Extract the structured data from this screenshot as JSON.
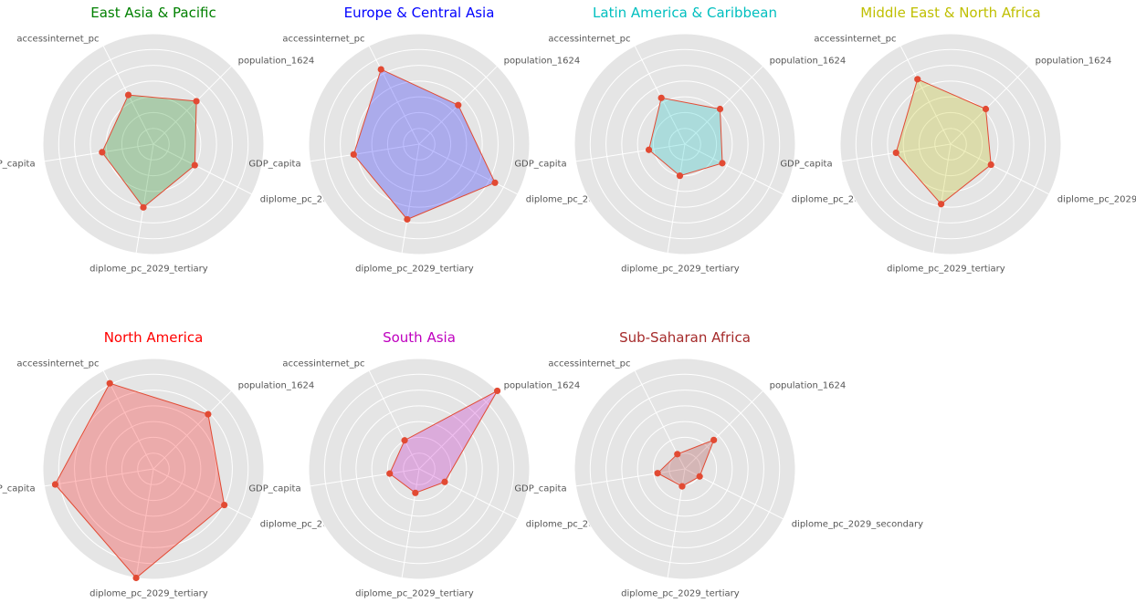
{
  "chart_data": {
    "type": "radar",
    "variables": [
      "population_1624",
      "accessinternet_pc",
      "GDP_capita",
      "diplome_pc_2029_tertiary",
      "diplome_pc_2029_secondary"
    ],
    "grid": true,
    "rlim": [
      0,
      1
    ],
    "charts": [
      {
        "title": "East Asia & Pacific",
        "title_color": "#008000",
        "fill_color": "#008000",
        "values": [
          0.55,
          0.5,
          0.47,
          0.58,
          0.42
        ]
      },
      {
        "title": "Europe & Central Asia",
        "title_color": "#0000ff",
        "fill_color": "#0000ff",
        "values": [
          0.5,
          0.76,
          0.6,
          0.69,
          0.77
        ]
      },
      {
        "title": "Latin America & Caribbean",
        "title_color": "#00bfbf",
        "fill_color": "#00bfbf",
        "values": [
          0.45,
          0.47,
          0.33,
          0.29,
          0.38
        ]
      },
      {
        "title": "Middle East & North Africa",
        "title_color": "#bfbf00",
        "fill_color": "#bfbf00",
        "values": [
          0.45,
          0.66,
          0.5,
          0.55,
          0.41
        ]
      },
      {
        "title": "North America",
        "title_color": "#ff0000",
        "fill_color": "#ff0000",
        "values": [
          0.7,
          0.87,
          0.9,
          1.0,
          0.72
        ]
      },
      {
        "title": "South Asia",
        "title_color": "#bf00bf",
        "fill_color": "#bf00bf",
        "values": [
          1.0,
          0.29,
          0.27,
          0.22,
          0.26
        ]
      },
      {
        "title": "Sub-Saharan Africa",
        "title_color": "#a52a2a",
        "fill_color": "#a52a2a",
        "values": [
          0.37,
          0.15,
          0.25,
          0.16,
          0.15
        ]
      }
    ]
  }
}
